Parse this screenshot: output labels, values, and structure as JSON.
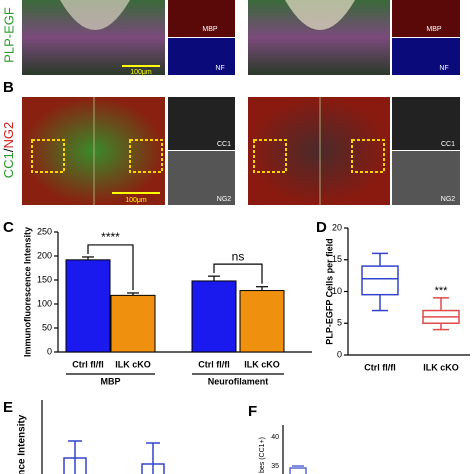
{
  "panels": {
    "a": {
      "ylabel": "PLP-EGF",
      "insets": [
        "MBP",
        "NF",
        "MBP",
        "NF"
      ],
      "scale_bar": "100μm"
    },
    "b": {
      "label": "B",
      "ylabel_green": "CC1",
      "ylabel_sep": "/",
      "ylabel_red": "NG2",
      "scale_bar": "100μm",
      "insets": [
        "CC1",
        "NG2",
        "CC1",
        "NG2"
      ]
    },
    "e": {
      "label": "E",
      "ylabel": "ence Intensity"
    },
    "f": {
      "label": "F",
      "ylabel": "bes (CC1+)",
      "ticks": [
        "40",
        "35"
      ]
    }
  },
  "chart_data": [
    {
      "type": "bar",
      "label": "C",
      "ylabel": "Immunofluorescence Intensity",
      "categories": [
        "Ctrl fl/fl",
        "ILK cKO",
        "Ctrl fl/fl",
        "ILK cKO"
      ],
      "groups": [
        "MBP",
        "Neurofilament"
      ],
      "values": [
        192,
        118,
        148,
        128
      ],
      "errors": [
        6,
        5,
        10,
        8
      ],
      "colors": [
        "#1a1aee",
        "#f0900f",
        "#1a1aee",
        "#f0900f"
      ],
      "annotations": [
        "****",
        "ns"
      ],
      "ylim": [
        0,
        250
      ],
      "yticks": [
        0,
        50,
        100,
        150,
        200,
        250
      ]
    },
    {
      "type": "box",
      "label": "D",
      "ylabel": "PLP-EGFP Cells per field",
      "categories": [
        "Ctrl fl/fl",
        "ILK cKO"
      ],
      "boxes": [
        {
          "min": 7,
          "q1": 9.5,
          "median": 12,
          "q3": 14,
          "max": 16,
          "color": "#3344cc"
        },
        {
          "min": 4,
          "q1": 5,
          "median": 6,
          "q3": 7,
          "max": 9,
          "color": "#e04a4a"
        }
      ],
      "annotation": "***",
      "ylim": [
        0,
        20
      ],
      "yticks": [
        0,
        5,
        10,
        15,
        20
      ]
    }
  ]
}
